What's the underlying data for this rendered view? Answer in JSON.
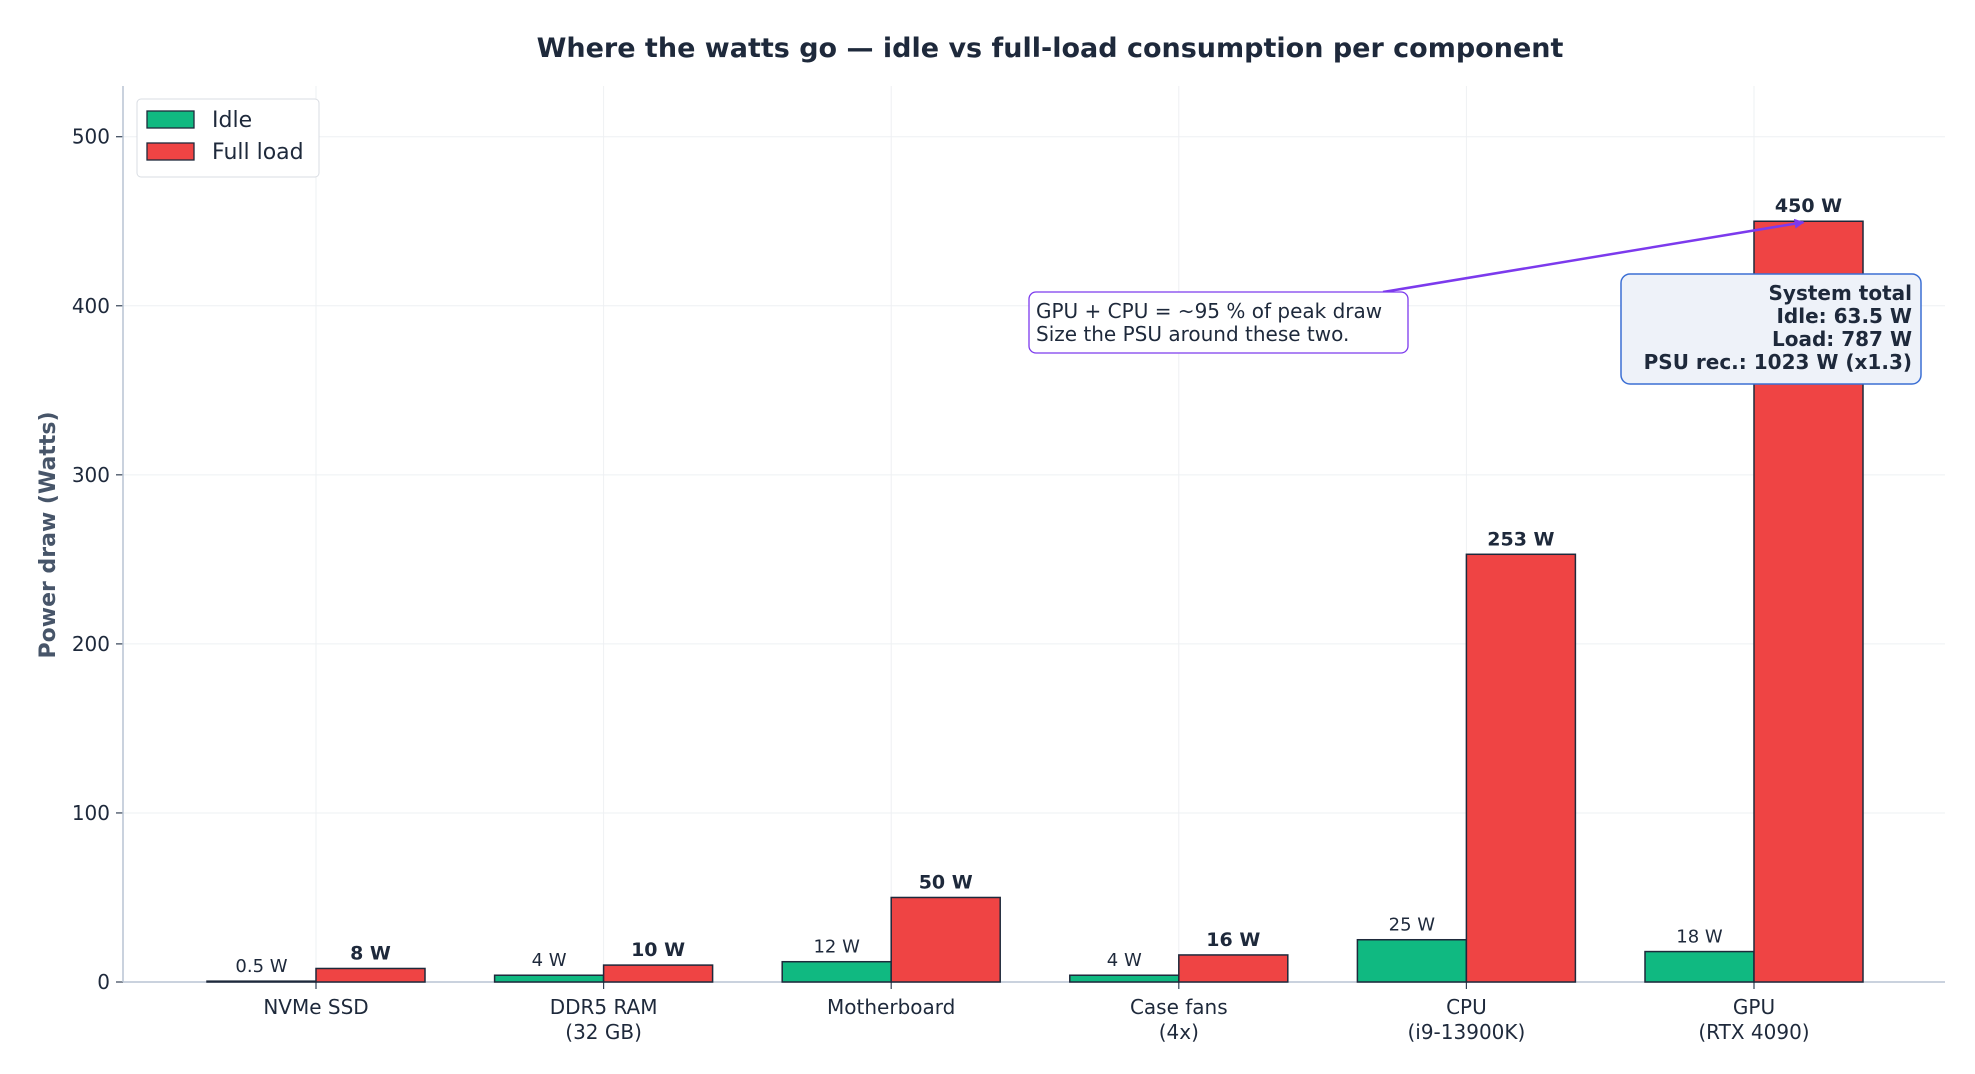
{
  "chart_data": {
    "type": "bar",
    "title": "Where the watts go — idle vs full-load consumption per component",
    "xlabel": "",
    "ylabel": "Power draw  (Watts)",
    "ylim": [
      0,
      530
    ],
    "yticks": [
      0,
      100,
      200,
      300,
      400,
      500
    ],
    "grid": true,
    "legend_position": "top-left",
    "categories": [
      [
        "NVMe SSD"
      ],
      [
        "DDR5 RAM",
        "(32 GB)"
      ],
      [
        "Motherboard"
      ],
      [
        "Case fans",
        "(4x)"
      ],
      [
        "CPU",
        "(i9-13900K)"
      ],
      [
        "GPU",
        "(RTX 4090)"
      ]
    ],
    "series": [
      {
        "name": "Idle",
        "color": "#10b981",
        "values": [
          0.5,
          4,
          12,
          4,
          25,
          18
        ],
        "labels": [
          "0.5 W",
          "4 W",
          "12 W",
          "4 W",
          "25 W",
          "18 W"
        ]
      },
      {
        "name": "Full load",
        "color": "#ef4444",
        "values": [
          8,
          10,
          50,
          16,
          253,
          450
        ],
        "labels": [
          "8 W",
          "10 W",
          "50 W",
          "16 W",
          "253 W",
          "450 W"
        ]
      }
    ],
    "annotations": {
      "arrow_note": {
        "lines": [
          "GPU + CPU = ~95 % of peak draw",
          "Size the PSU around these two."
        ],
        "target_category": 5,
        "target_value": 450,
        "color": "#7c3aed"
      },
      "summary_box": {
        "lines": [
          "System total",
          "Idle: 63.5 W",
          "Load: 787 W",
          "PSU rec.: 1023 W (x1.3)"
        ],
        "border_color": "#3b6fd4",
        "fill_color": "#eef2f9"
      }
    }
  }
}
